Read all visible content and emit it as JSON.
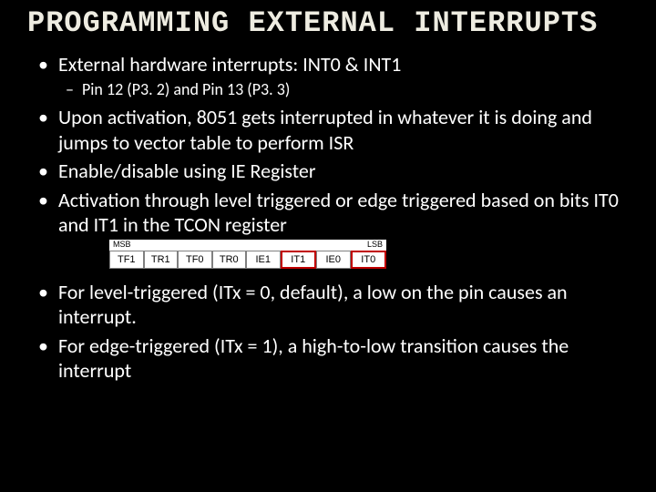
{
  "title": "PROGRAMMING EXTERNAL INTERRUPTS",
  "bullets": {
    "b1": "External hardware interrupts: INT0 & INT1",
    "b1a": "Pin 12 (P3. 2) and Pin 13 (P3. 3)",
    "b2": "Upon activation, 8051 gets interrupted in whatever it is doing and jumps to vector table to perform ISR",
    "b3": "Enable/disable using IE Register",
    "b4": "Activation through level triggered or edge triggered based on bits IT0 and IT1 in the TCON register",
    "b5": "For level-triggered (ITx = 0, default), a low on the pin causes an interrupt.",
    "b6": "For edge-triggered (ITx = 1), a high-to-low transition causes the interrupt"
  },
  "register": {
    "msb_label": "MSB",
    "lsb_label": "LSB",
    "cells": {
      "c0": "TF1",
      "c1": "TR1",
      "c2": "TF0",
      "c3": "TR0",
      "c4": "IE1",
      "c5": "IT1",
      "c6": "IE0",
      "c7": "IT0"
    },
    "highlight_color": "#c00000",
    "border_color": "#808080",
    "bg_color": "#ffffff",
    "text_color": "#000000",
    "label_fontsize": 9,
    "cell_fontsize": 11
  },
  "colors": {
    "slide_bg": "#000000",
    "title_color": "#eeece1",
    "body_color": "#ffffff"
  },
  "fonts": {
    "title_family": "Consolas",
    "body_family": "Calibri",
    "title_size": 32,
    "body_size": 22,
    "sub_size": 18
  }
}
